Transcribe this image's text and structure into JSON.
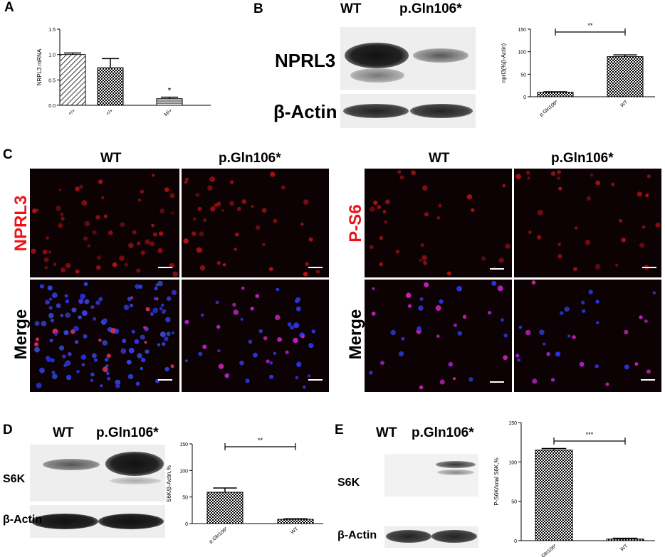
{
  "panels": {
    "A": {
      "letter": "A"
    },
    "B": {
      "letter": "B",
      "col1": "WT",
      "col2": "p.Gln106*",
      "row1": "NPRL3",
      "row2": "β-Actin"
    },
    "C": {
      "letter": "C",
      "left_col1": "WT",
      "left_col2": "p.Gln106*",
      "right_col1": "WT",
      "right_col2": "p.Gln106*",
      "left_row1": "NPRL3",
      "left_row2": "Merge",
      "right_row1": "P-S6",
      "right_row2": "Merge",
      "accent": "#e8141a"
    },
    "D": {
      "letter": "D",
      "col1": "WT",
      "col2": "p.Gln106*",
      "row1": "S6K",
      "row2": "β-Actin"
    },
    "E": {
      "letter": "E",
      "col1": "WT",
      "col2": "p.Gln106*",
      "row1": "S6K",
      "row2": "β-Actin"
    }
  },
  "chart_data": [
    {
      "id": "A",
      "type": "bar",
      "categories": [
        "+/+",
        "+/+",
        "M/+"
      ],
      "values": [
        1.0,
        0.74,
        0.13
      ],
      "errors": [
        0.03,
        0.18,
        0.03
      ],
      "ylabel": "NRPL3 mRNA",
      "ylim": [
        0,
        1.5
      ],
      "yticks": [
        "0.0",
        "0.5",
        "1.0",
        "1.5"
      ],
      "annotation": "*"
    },
    {
      "id": "B",
      "type": "bar",
      "categories": [
        "p.Gln106*",
        "WT"
      ],
      "values": [
        10,
        89
      ],
      "errors": [
        1,
        4
      ],
      "ylabel": "nprl3(%β-Actin)",
      "ylim": [
        0,
        150
      ],
      "yticks": [
        "0",
        "50",
        "100",
        "150"
      ],
      "annotation": "**"
    },
    {
      "id": "D",
      "type": "bar",
      "categories": [
        "p.Gln106*",
        "WT"
      ],
      "values": [
        59,
        8
      ],
      "errors": [
        8,
        1
      ],
      "ylabel": "S6K/β-Actin,%",
      "ylim": [
        0,
        150
      ],
      "yticks": [
        "0",
        "50",
        "100",
        "150"
      ],
      "annotation": "**"
    },
    {
      "id": "E",
      "type": "bar",
      "categories": [
        "p.Gln106*",
        "WT"
      ],
      "values": [
        115,
        2
      ],
      "errors": [
        2,
        1
      ],
      "ylabel": "P-S6K/total S6K,%",
      "ylim": [
        0,
        150
      ],
      "yticks": [
        "0",
        "50",
        "100",
        "150"
      ],
      "annotation": "***"
    }
  ]
}
